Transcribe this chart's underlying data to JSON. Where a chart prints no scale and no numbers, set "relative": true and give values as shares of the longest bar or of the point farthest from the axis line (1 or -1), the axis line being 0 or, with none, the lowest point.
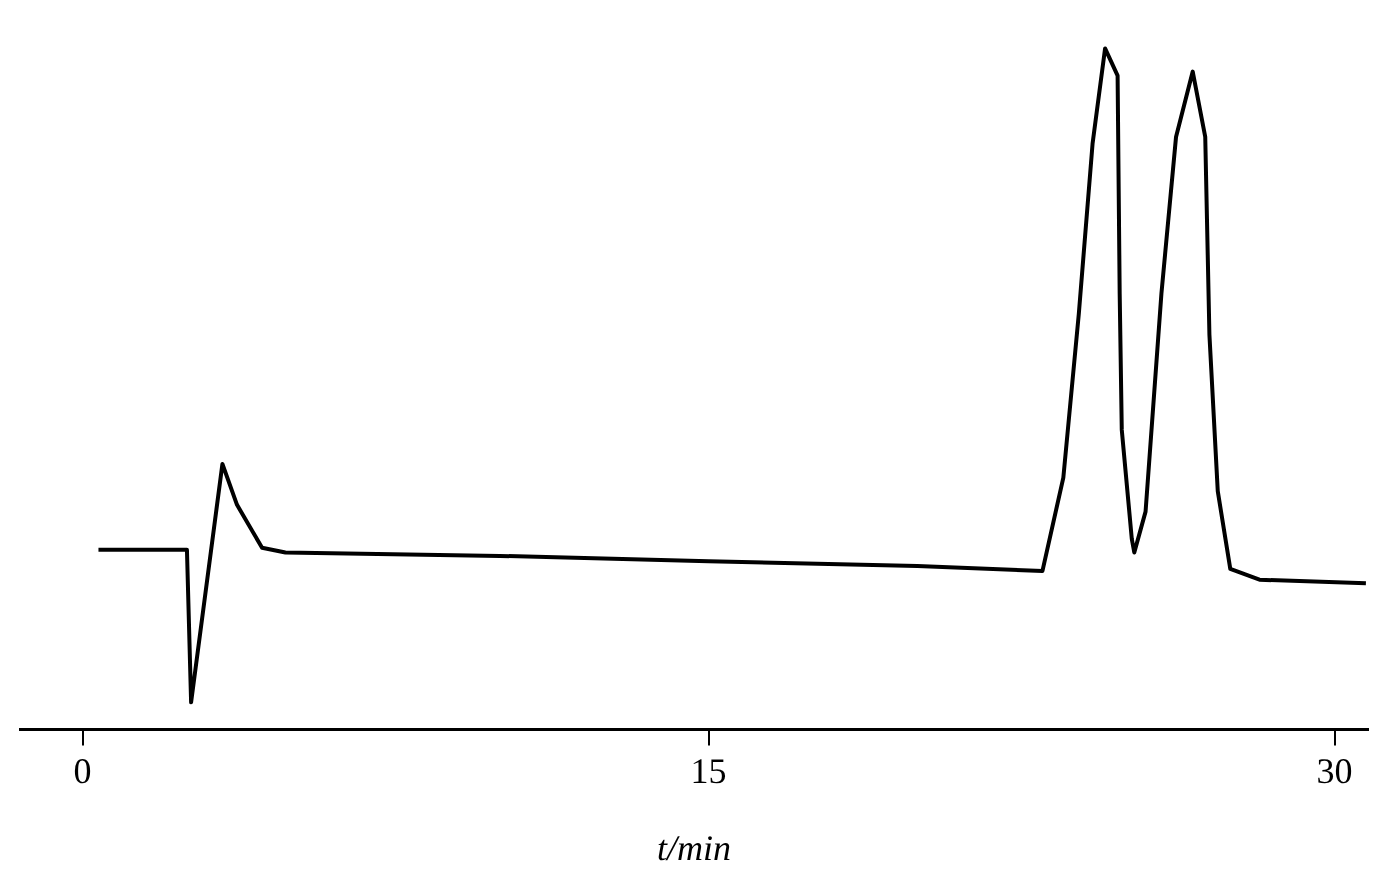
{
  "chart_data": {
    "type": "line",
    "relative": true,
    "xlabel": "t/min",
    "xlim": [
      -1.5,
      30.8
    ],
    "xticks": [
      0,
      15,
      30
    ],
    "grid": false,
    "legend": false,
    "marker": "none",
    "line_style": "solid",
    "series": [
      {
        "color": "#000000",
        "x": [
          0.38,
          2.5,
          2.6,
          3.35,
          3.7,
          4.3,
          4.86,
          10,
          15,
          20,
          23,
          23.5,
          23.87,
          24.2,
          24.5,
          24.8,
          24.85,
          24.9,
          25.14,
          25.2,
          25.47,
          25.85,
          26.2,
          26.6,
          26.9,
          27.0,
          27.2,
          27.5,
          28.2,
          30.75
        ],
        "values": [
          0.264,
          0.264,
          0.04,
          0.39,
          0.33,
          0.267,
          0.26,
          0.255,
          0.247,
          0.24,
          0.233,
          0.37,
          0.61,
          0.86,
          1.0,
          0.96,
          0.64,
          0.44,
          0.28,
          0.26,
          0.32,
          0.64,
          0.87,
          0.966,
          0.87,
          0.58,
          0.35,
          0.236,
          0.22,
          0.215
        ]
      }
    ]
  }
}
